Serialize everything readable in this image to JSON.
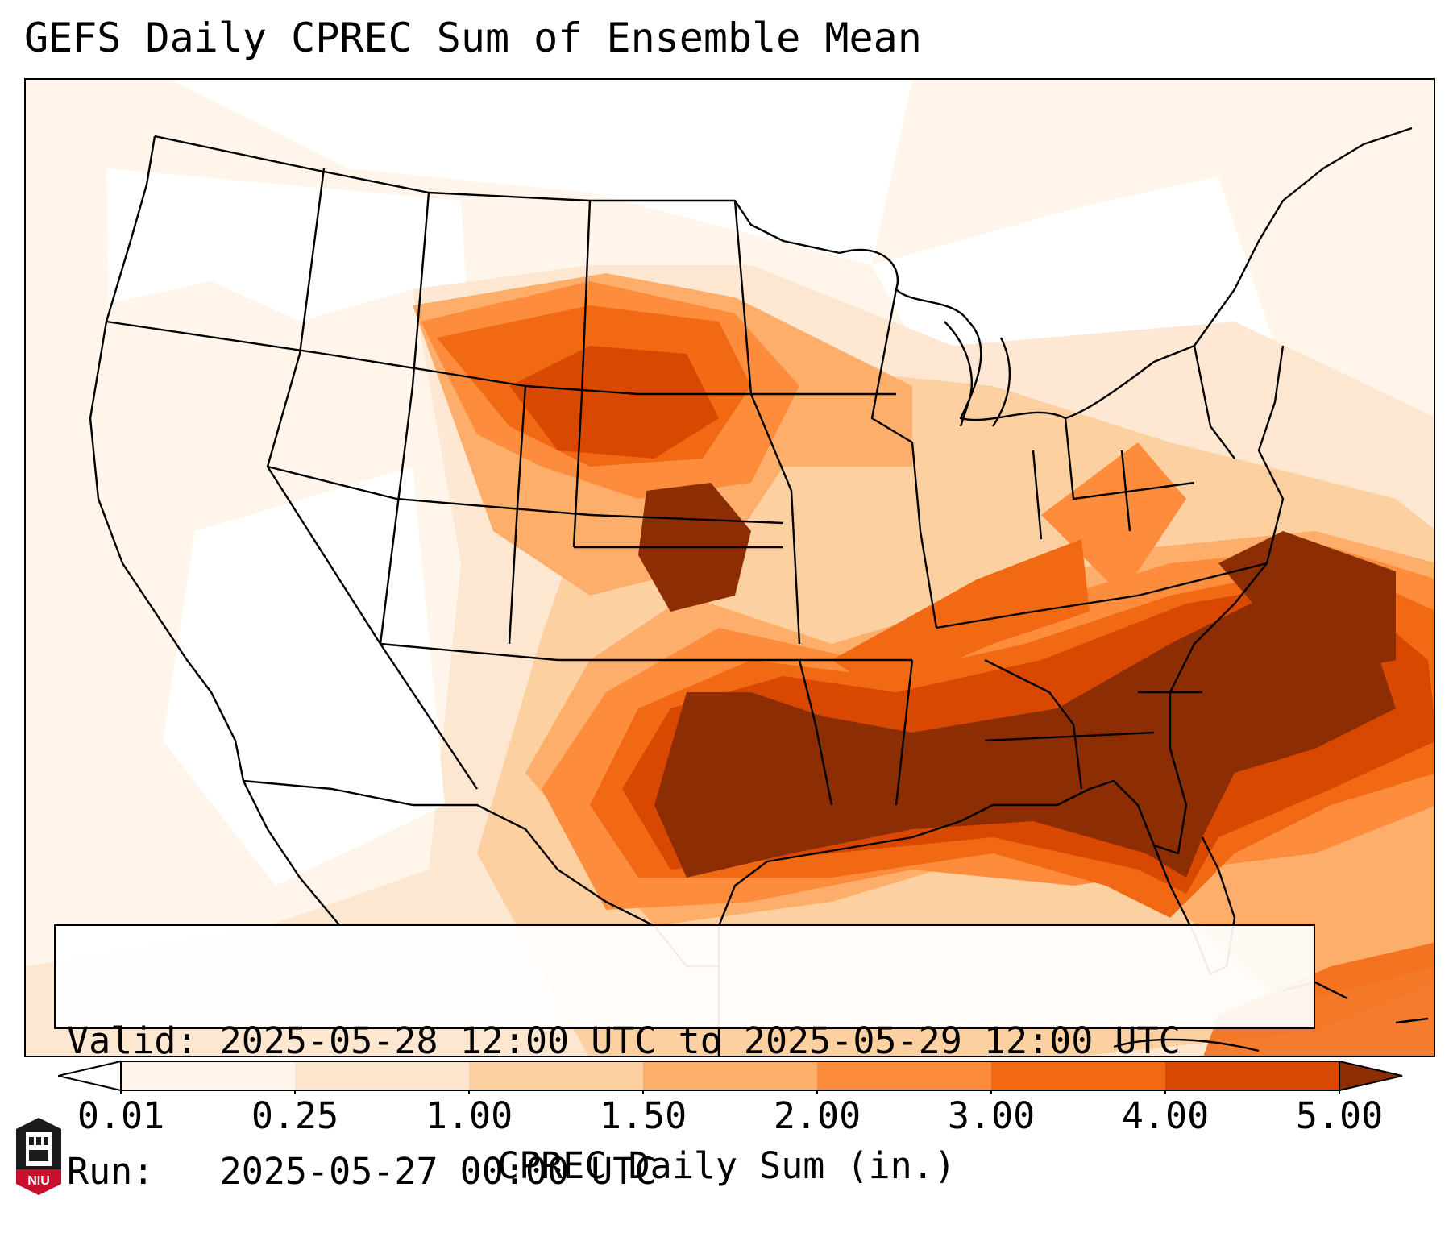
{
  "title": "GEFS Daily CPREC Sum of Ensemble Mean",
  "info": {
    "valid_line": "Valid: 2025-05-28 12:00 UTC to 2025-05-29 12:00 UTC",
    "run_line": "Run:   2025-05-27 00:00 UTC"
  },
  "colorbar": {
    "label": "CPREC Daily Sum (in.)",
    "ticks": [
      "0.01",
      "0.25",
      "1.00",
      "1.50",
      "2.00",
      "3.00",
      "4.00",
      "5.00"
    ],
    "colors": [
      "#fff5eb",
      "#fee6ce",
      "#fdd0a2",
      "#fdae6b",
      "#fd8d3c",
      "#f16913",
      "#d94801",
      "#8c2d04"
    ],
    "extend": "both"
  },
  "logo": {
    "text": "NIU",
    "colors": {
      "red": "#c8102e",
      "black": "#1a1a1a"
    }
  },
  "map": {
    "projection": "lambert-conformal",
    "region": "CONUS",
    "field": "CPREC daily sum",
    "colors": {
      "c0": "#fff5eb",
      "c1": "#fee6ce",
      "c2": "#fdd0a2",
      "c3": "#fdae6b",
      "c4": "#fd8d3c",
      "c5": "#f16913",
      "c6": "#d94801",
      "c7": "#8c2d04"
    }
  }
}
